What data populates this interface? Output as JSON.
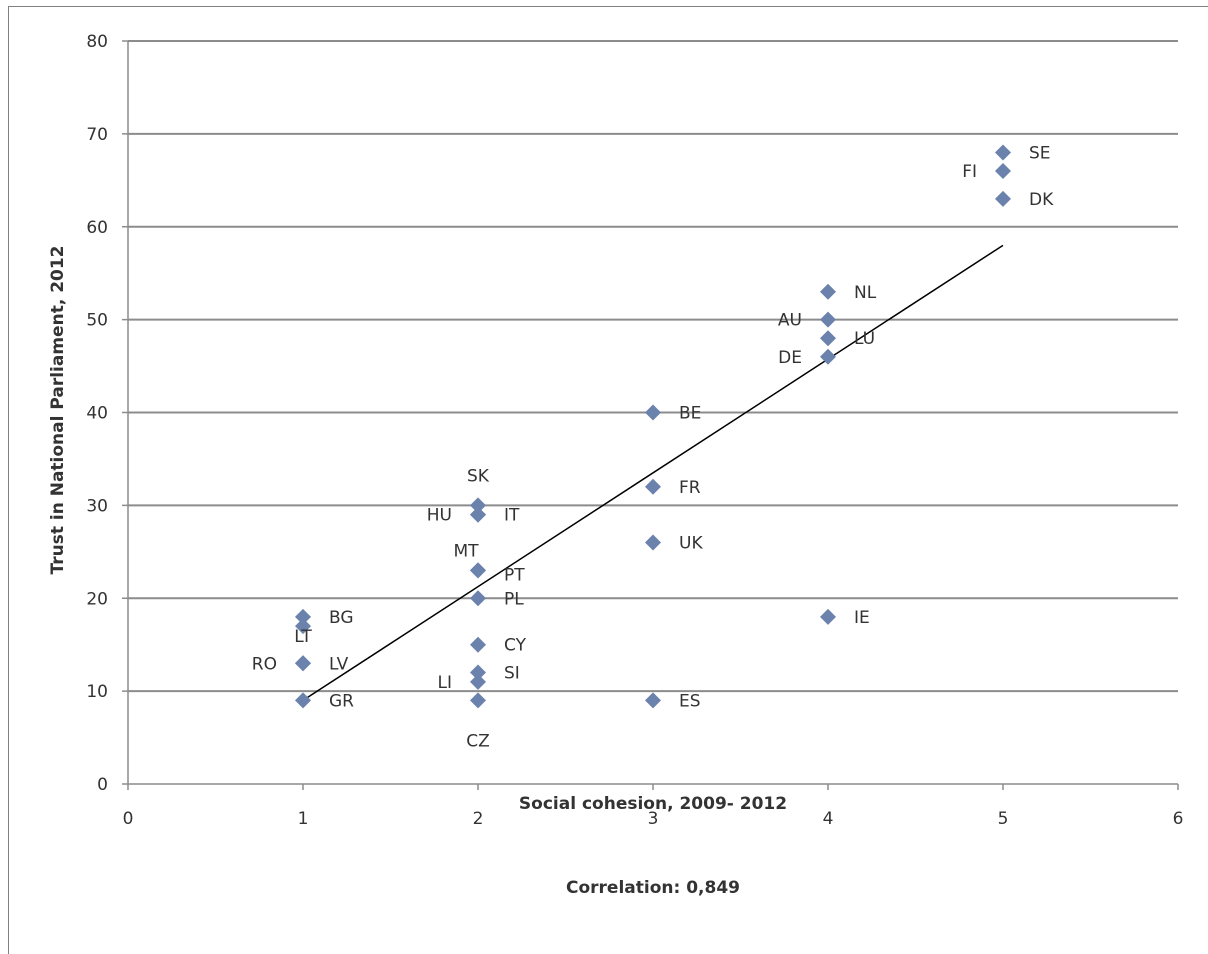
{
  "chart_data": {
    "type": "scatter",
    "xlabel": "Social cohesion, 2009- 2012",
    "ylabel": "Trust in National Parliament, 2012",
    "footnote": "Correlation: 0,849",
    "xlim": [
      0,
      6
    ],
    "ylim": [
      0,
      80
    ],
    "xticks": [
      0,
      1,
      2,
      3,
      4,
      5,
      6
    ],
    "yticks": [
      0,
      10,
      20,
      30,
      40,
      50,
      60,
      70,
      80
    ],
    "grid": "horizontal",
    "marker_color": "#6b82ad",
    "line_color": "#000000",
    "points": [
      {
        "label": "SE",
        "x": 5,
        "y": 68,
        "lpos": "right"
      },
      {
        "label": "FI",
        "x": 5,
        "y": 66,
        "lpos": "left"
      },
      {
        "label": "DK",
        "x": 5,
        "y": 63,
        "lpos": "right"
      },
      {
        "label": "NL",
        "x": 4,
        "y": 53,
        "lpos": "right"
      },
      {
        "label": "AU",
        "x": 4,
        "y": 50,
        "lpos": "left"
      },
      {
        "label": "LU",
        "x": 4,
        "y": 48,
        "lpos": "right"
      },
      {
        "label": "DE",
        "x": 4,
        "y": 46,
        "lpos": "left"
      },
      {
        "label": "IE",
        "x": 4,
        "y": 18,
        "lpos": "right"
      },
      {
        "label": "BE",
        "x": 3,
        "y": 40,
        "lpos": "right"
      },
      {
        "label": "FR",
        "x": 3,
        "y": 32,
        "lpos": "right"
      },
      {
        "label": "UK",
        "x": 3,
        "y": 26,
        "lpos": "right"
      },
      {
        "label": "ES",
        "x": 3,
        "y": 9,
        "lpos": "right"
      },
      {
        "label": "SK",
        "x": 2,
        "y": 30,
        "lpos": "above"
      },
      {
        "label": "HU",
        "x": 2,
        "y": 29,
        "lpos": "left"
      },
      {
        "label": "IT",
        "x": 2,
        "y": 29,
        "lpos": "right"
      },
      {
        "label": "MT",
        "x": 2,
        "y": 23,
        "lpos": "aboveleft"
      },
      {
        "label": "PT",
        "x": 2,
        "y": 23,
        "lpos": "belowright"
      },
      {
        "label": "PL",
        "x": 2,
        "y": 20,
        "lpos": "right"
      },
      {
        "label": "CY",
        "x": 2,
        "y": 15,
        "lpos": "right"
      },
      {
        "label": "SI",
        "x": 2,
        "y": 12,
        "lpos": "right"
      },
      {
        "label": "LI",
        "x": 2,
        "y": 11,
        "lpos": "left"
      },
      {
        "label": "CZ",
        "x": 2,
        "y": 9,
        "lpos": "below"
      },
      {
        "label": "BG",
        "x": 1,
        "y": 18,
        "lpos": "right"
      },
      {
        "label": "LT",
        "x": 1,
        "y": 17,
        "lpos": "belowleft"
      },
      {
        "label": "RO",
        "x": 1,
        "y": 13,
        "lpos": "left"
      },
      {
        "label": "LV",
        "x": 1,
        "y": 13,
        "lpos": "right"
      },
      {
        "label": "GR",
        "x": 1,
        "y": 9,
        "lpos": "right"
      }
    ],
    "trendline": {
      "x": [
        1,
        5
      ],
      "y": [
        9,
        58
      ]
    }
  }
}
